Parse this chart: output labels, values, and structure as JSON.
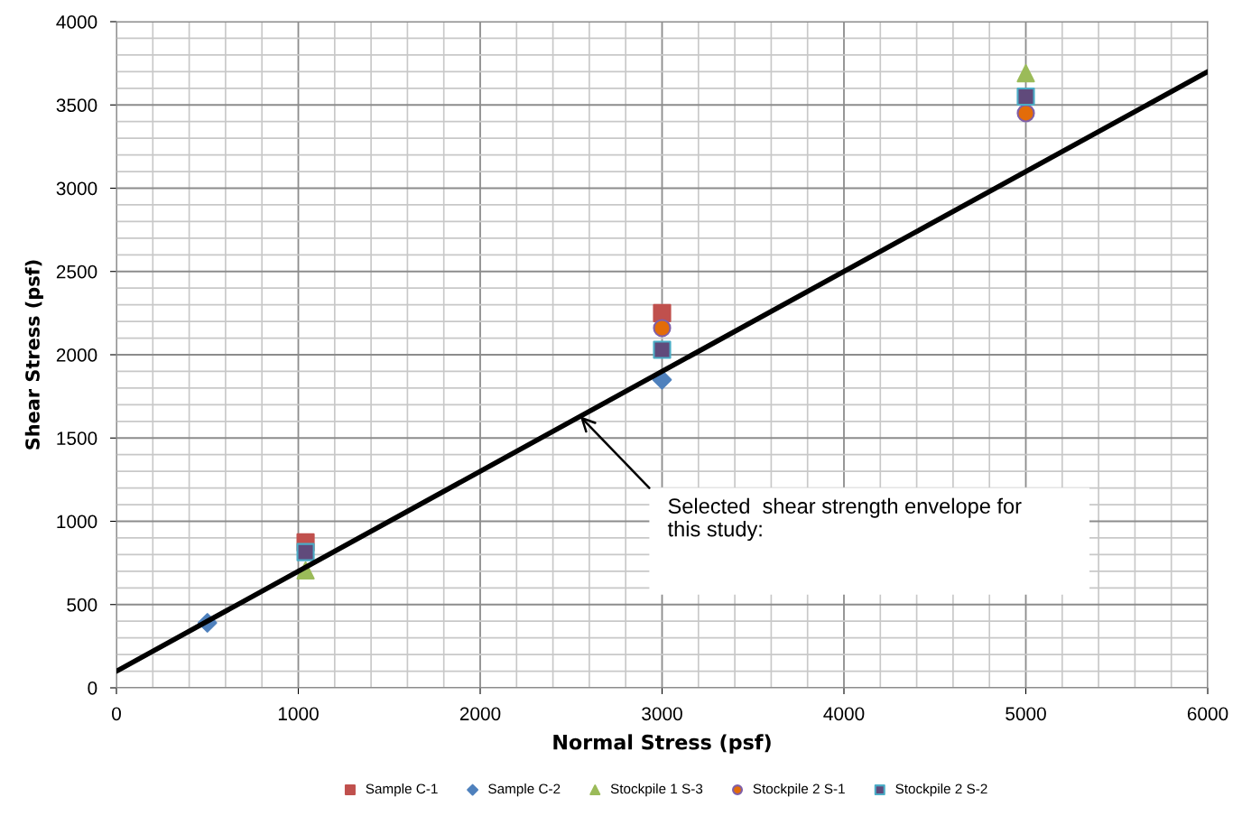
{
  "chart_data": {
    "type": "scatter",
    "xlabel": "Normal Stress (psf)",
    "ylabel": "Shear Stress (psf)",
    "xlim": [
      0,
      6000
    ],
    "ylim": [
      0,
      4000
    ],
    "xticks": [
      0,
      1000,
      2000,
      3000,
      4000,
      5000,
      6000
    ],
    "yticks": [
      0,
      500,
      1000,
      1500,
      2000,
      2500,
      3000,
      3500,
      4000
    ],
    "grid": true,
    "legend": "bottom",
    "series": [
      {
        "name": "Sample C-1",
        "color": "#c0504d",
        "marker": "square",
        "x": [
          1040,
          3000
        ],
        "values": [
          873,
          2250
        ]
      },
      {
        "name": "Sample C-2",
        "color": "#4f81bd",
        "marker": "diamond",
        "x": [
          500,
          3000
        ],
        "values": [
          390,
          1850
        ]
      },
      {
        "name": "Stockpile 1 S-3",
        "color": "#9bbb59",
        "marker": "triangle",
        "x": [
          1040,
          5000
        ],
        "values": [
          705,
          3690
        ]
      },
      {
        "name": "Stockpile 2 S-1",
        "color": "#e36c09",
        "marker": "circle",
        "x": [
          3000,
          5000
        ],
        "values": [
          2160,
          3450
        ]
      },
      {
        "name": "Stockpile 2 S-2",
        "color": "#604a7b",
        "marker": "square",
        "x": [
          1040,
          3000,
          5000
        ],
        "values": [
          815,
          2030,
          3550
        ]
      },
      {
        "type": "line",
        "color": "#000000",
        "marker": "none",
        "x": [
          0,
          6000
        ],
        "values": [
          100,
          3700
        ]
      }
    ],
    "annotations": [
      {
        "text": "Selected  shear strength envelope for\nthis study:",
        "x": 2550,
        "y": 1630
      }
    ]
  }
}
